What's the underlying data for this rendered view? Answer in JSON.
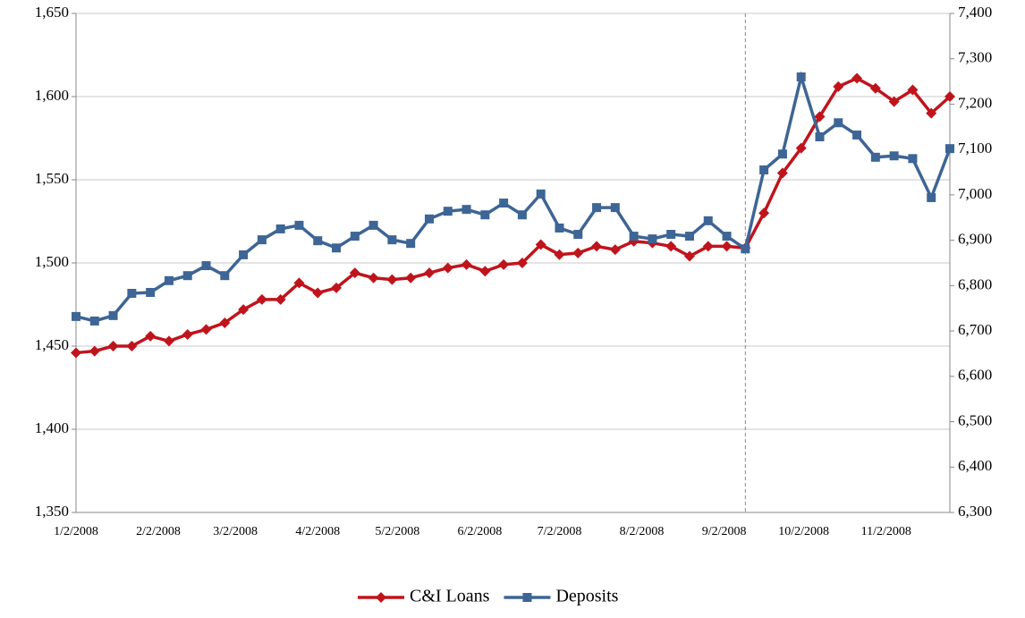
{
  "chart_data": {
    "type": "line",
    "x": [
      "1/2/2008",
      "1/9/2008",
      "1/16/2008",
      "1/23/2008",
      "1/30/2008",
      "2/6/2008",
      "2/13/2008",
      "2/20/2008",
      "2/27/2008",
      "3/5/2008",
      "3/12/2008",
      "3/19/2008",
      "3/26/2008",
      "4/2/2008",
      "4/9/2008",
      "4/16/2008",
      "4/23/2008",
      "4/30/2008",
      "5/7/2008",
      "5/14/2008",
      "5/21/2008",
      "5/28/2008",
      "6/4/2008",
      "6/11/2008",
      "6/18/2008",
      "6/25/2008",
      "7/2/2008",
      "7/9/2008",
      "7/16/2008",
      "7/23/2008",
      "7/30/2008",
      "8/6/2008",
      "8/13/2008",
      "8/20/2008",
      "8/27/2008",
      "9/3/2008",
      "9/10/2008",
      "9/17/2008",
      "9/24/2008",
      "10/1/2008",
      "10/8/2008",
      "10/15/2008",
      "10/22/2008",
      "10/29/2008",
      "11/5/2008",
      "11/12/2008",
      "11/19/2008",
      "11/26/2008"
    ],
    "series": [
      {
        "name": "C&I Loans",
        "color": "#c0141c",
        "marker": "diamond",
        "values": [
          1446,
          1447,
          1450,
          1450,
          1456,
          1453,
          1457,
          1460,
          1464,
          1472,
          1478,
          1478,
          1488,
          1482,
          1485,
          1494,
          1491,
          1490,
          1491,
          1494,
          1497,
          1499,
          1495,
          1499,
          1500,
          1511,
          1505,
          1506,
          1510,
          1508,
          1513,
          1512,
          1510,
          1504,
          1510,
          1510,
          1509,
          1530,
          1554,
          1569,
          1588,
          1606,
          1611,
          1605,
          1597,
          1604,
          1590,
          1600
        ]
      },
      {
        "name": "Deposits",
        "color": "#3d6595",
        "marker": "square",
        "axis": "y2",
        "values": [
          6732,
          6722,
          6734,
          6783,
          6785,
          6811,
          6822,
          6844,
          6822,
          6868,
          6901,
          6925,
          6933,
          6899,
          6883,
          6909,
          6933,
          6901,
          6893,
          6947,
          6964,
          6968,
          6956,
          6982,
          6956,
          7002,
          6927,
          6913,
          6972,
          6972,
          6909,
          6903,
          6913,
          6909,
          6943,
          6909,
          6881,
          7055,
          7090,
          7260,
          7128,
          7159,
          7132,
          7083,
          7086,
          7080,
          6994,
          7102
        ]
      }
    ],
    "xlim": [
      "1/2/2008",
      "11/26/2008"
    ],
    "xticks": [
      "1/2/2008",
      "2/2/2008",
      "3/2/2008",
      "4/2/2008",
      "5/2/2008",
      "6/2/2008",
      "7/2/2008",
      "8/2/2008",
      "9/2/2008",
      "10/2/2008",
      "11/2/2008"
    ],
    "ylim": [
      1350,
      1650
    ],
    "yticks": [
      {
        "value": 1350,
        "label": "1,350"
      },
      {
        "value": 1400,
        "label": "1,400"
      },
      {
        "value": 1450,
        "label": "1,450"
      },
      {
        "value": 1500,
        "label": "1,500"
      },
      {
        "value": 1550,
        "label": "1,550"
      },
      {
        "value": 1600,
        "label": "1,600"
      },
      {
        "value": 1650,
        "label": "1,650"
      }
    ],
    "y2lim": [
      6300,
      7400
    ],
    "y2ticks": [
      {
        "value": 6300,
        "label": "6,300"
      },
      {
        "value": 6400,
        "label": "6,400"
      },
      {
        "value": 6500,
        "label": "6,500"
      },
      {
        "value": 6600,
        "label": "6,600"
      },
      {
        "value": 6700,
        "label": "6,700"
      },
      {
        "value": 6800,
        "label": "6,800"
      },
      {
        "value": 6900,
        "label": "6,900"
      },
      {
        "value": 7000,
        "label": "7,000"
      },
      {
        "value": 7100,
        "label": "7,100"
      },
      {
        "value": 7200,
        "label": "7,200"
      },
      {
        "value": 7300,
        "label": "7,300"
      },
      {
        "value": 7400,
        "label": "7,400"
      }
    ],
    "vline": "9/10/2008",
    "grid": true,
    "legend": "bottom"
  }
}
